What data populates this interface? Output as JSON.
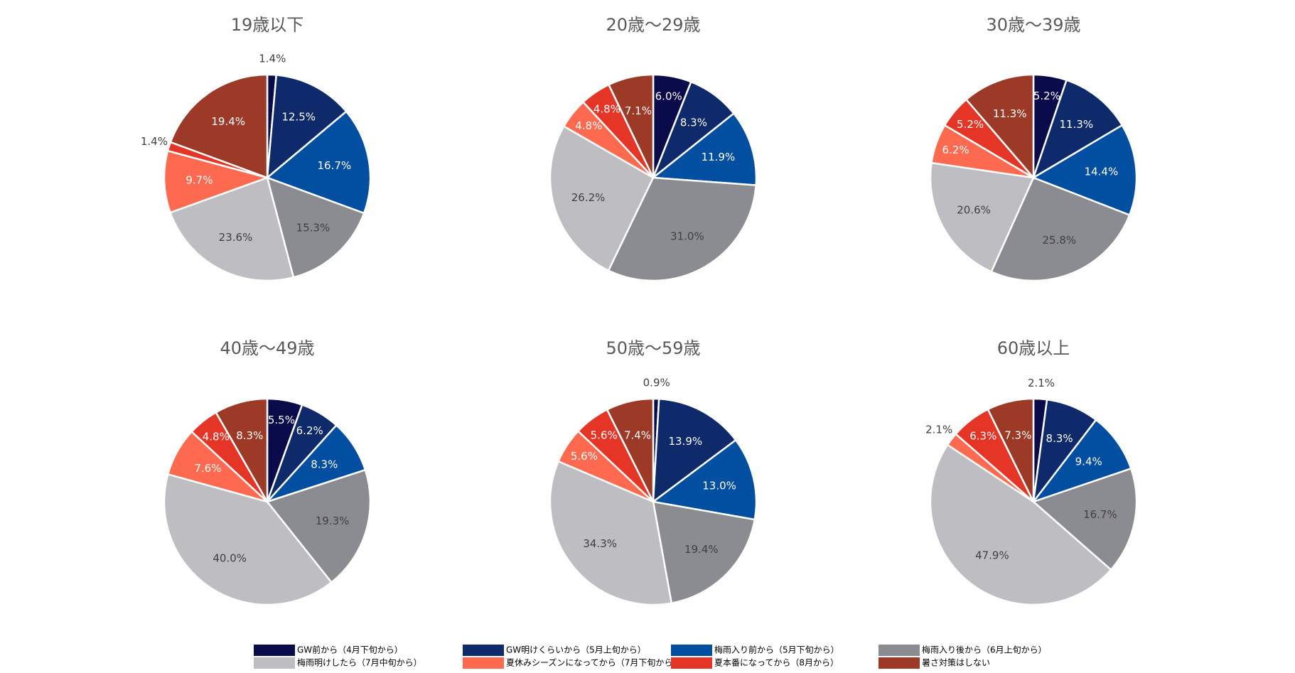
{
  "legend": [
    {
      "label": "GW前から（4月下旬から）",
      "color": "#0a0b4a"
    },
    {
      "label": "GW明けくらいから（5月上旬から）",
      "color": "#0e2a6b"
    },
    {
      "label": "梅雨入り前から（5月下旬から）",
      "color": "#024ea0"
    },
    {
      "label": "梅雨入り後から（6月上旬から）",
      "color": "#8b8c91"
    },
    {
      "label": "梅雨明けしたら（7月中旬から）",
      "color": "#bdbdc2"
    },
    {
      "label": "夏休みシーズンになってから（7月下旬から）",
      "color": "#fe6a50"
    },
    {
      "label": "夏本番になってから（8月から）",
      "color": "#e53527"
    },
    {
      "label": "暑さ対策はしない",
      "color": "#9c3927"
    }
  ],
  "chart_data": [
    {
      "type": "pie",
      "title": "19歳以下",
      "values": [
        1.4,
        12.5,
        16.7,
        15.3,
        23.6,
        9.7,
        1.4,
        19.4
      ],
      "labels": [
        "1.4%",
        "12.5%",
        "16.7%",
        "15.3%",
        "23.6%",
        "9.7%",
        "1.4%",
        "19.4%"
      ]
    },
    {
      "type": "pie",
      "title": "20歳～29歳",
      "values": [
        6.0,
        8.3,
        11.9,
        31.0,
        26.2,
        4.8,
        4.8,
        7.1
      ],
      "labels": [
        "6.0%",
        "8.3%",
        "11.9%",
        "31.0%",
        "26.2%",
        "4.8%",
        "4.8%",
        "7.1%"
      ]
    },
    {
      "type": "pie",
      "title": "30歳～39歳",
      "values": [
        5.2,
        11.3,
        14.4,
        25.8,
        20.6,
        6.2,
        5.2,
        11.3
      ],
      "labels": [
        "5.2%",
        "11.3%",
        "14.4%",
        "25.8%",
        "20.6%",
        "6.2%",
        "5.2%",
        "11.3%"
      ]
    },
    {
      "type": "pie",
      "title": "40歳～49歳",
      "values": [
        5.5,
        6.2,
        8.3,
        19.3,
        40.0,
        7.6,
        4.8,
        8.3
      ],
      "labels": [
        "5.5%",
        "6.2%",
        "8.3%",
        "19.3%",
        "40.0%",
        "7.6%",
        "4.8%",
        "8.3%"
      ]
    },
    {
      "type": "pie",
      "title": "50歳～59歳",
      "values": [
        0.9,
        13.9,
        13.0,
        19.4,
        34.3,
        5.6,
        5.6,
        7.4
      ],
      "labels": [
        "0.9%",
        "13.9%",
        "13.0%",
        "19.4%",
        "34.3%",
        "5.6%",
        "5.6%",
        "7.4%"
      ]
    },
    {
      "type": "pie",
      "title": "60歳以上",
      "values": [
        2.1,
        8.3,
        9.4,
        16.7,
        47.9,
        2.1,
        6.3,
        7.3
      ],
      "labels": [
        "2.1%",
        "8.3%",
        "9.4%",
        "16.7%",
        "47.9%",
        "2.1%",
        "6.3%",
        "7.3%"
      ]
    }
  ]
}
